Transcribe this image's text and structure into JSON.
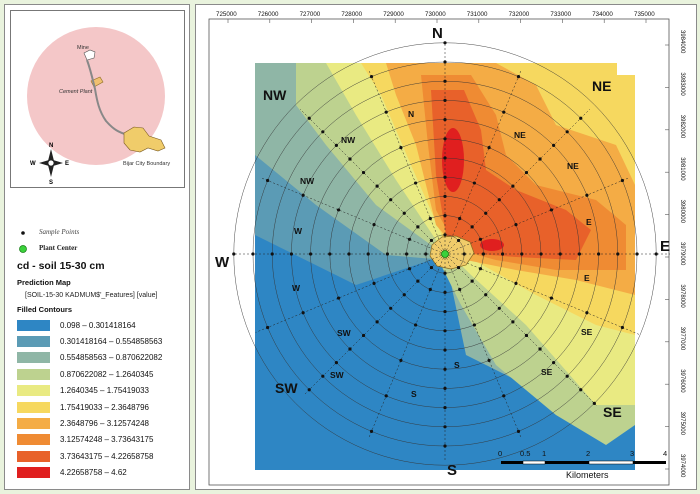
{
  "inset": {
    "mine_label": "Mine",
    "cement_plant_label": "Cement Plant",
    "city_boundary_label": "Bijar City Boundary",
    "compass": {
      "n": "N",
      "s": "S",
      "e": "E",
      "w": "W"
    }
  },
  "symbols": {
    "sample_points_label": "Sample Points",
    "plant_center_label": "Plant Center"
  },
  "legend": {
    "title": "cd - soil 15-30 cm",
    "subtitle": "Prediction Map",
    "layer_label": "[SOIL-15-30 KADMUM$'_Features] [value]",
    "filled_contours_label": "Filled Contours",
    "classes": [
      {
        "label": "0.098 – 0.301418164",
        "color": "#2e86c4"
      },
      {
        "label": "0.301418164 – 0.554858563",
        "color": "#5b9bb5"
      },
      {
        "label": "0.554858563 – 0.870622082",
        "color": "#8fb6a6"
      },
      {
        "label": "0.870622082 – 1.2640345",
        "color": "#bdd28f"
      },
      {
        "label": "1.2640345 – 1.75419033",
        "color": "#e9ea82"
      },
      {
        "label": "1.75419033 – 2.3648796",
        "color": "#f6d85f"
      },
      {
        "label": "2.3648796 – 3.12574248",
        "color": "#f4ac45"
      },
      {
        "label": "3.12574248 – 3.73643175",
        "color": "#ef8b33"
      },
      {
        "label": "3.73643175 – 4.22658758",
        "color": "#e8612a"
      },
      {
        "label": "4.22658758 – 4.62",
        "color": "#e01f1f"
      }
    ]
  },
  "map": {
    "x_ticks": [
      "725000",
      "726000",
      "727000",
      "728000",
      "729000",
      "730000",
      "731000",
      "732000",
      "733000",
      "734000",
      "735000"
    ],
    "y_ticks": [
      "3984000",
      "3983000",
      "3982000",
      "3981000",
      "3980000",
      "3979000",
      "3978000",
      "3977000",
      "3976000",
      "3975000",
      "3974000"
    ],
    "cardinals": {
      "n": "N",
      "s": "S",
      "e": "E",
      "w": "W",
      "ne": "NE",
      "nw": "NW",
      "se": "SE",
      "sw": "SW"
    },
    "scale": {
      "ticks": [
        "0",
        "0.5",
        "1",
        "2",
        "3",
        "4"
      ],
      "unit": "Kilometers"
    }
  }
}
